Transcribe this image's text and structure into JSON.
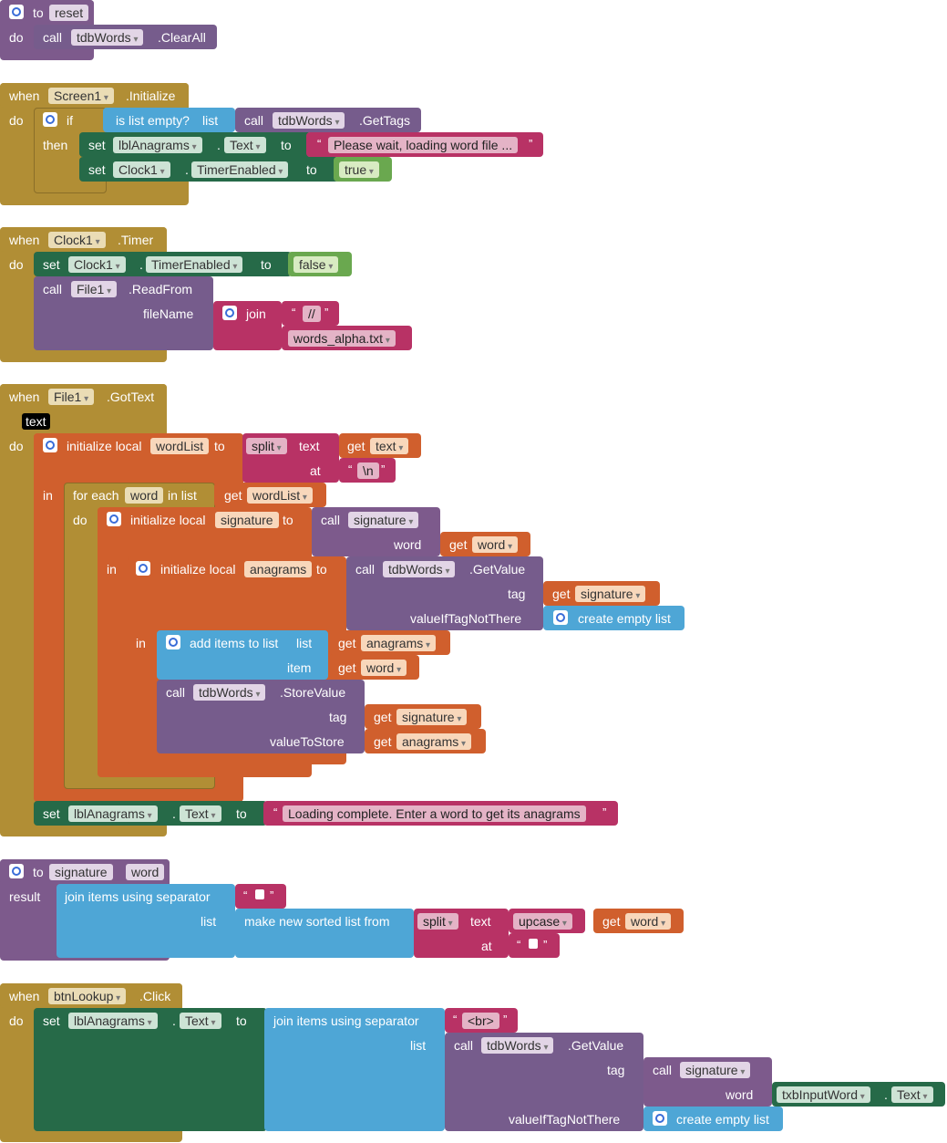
{
  "colors": {
    "event": "#b18e35",
    "procedure": "#7d5a8c",
    "component": "#765c8c",
    "setter": "#266a48",
    "list": "#4ea6d6",
    "text": "#b83265",
    "variable": "#d05f2d",
    "logic": "#6aa84f"
  },
  "reset": {
    "to": "to",
    "name": "reset",
    "do": "do",
    "call": "call",
    "comp": "tdbWords",
    "method": ".ClearAll"
  },
  "screen_init": {
    "when": "when",
    "comp": "Screen1",
    "event": ".Initialize",
    "do": "do",
    "if": "if",
    "then": "then",
    "is_list_empty": "is list empty?",
    "list": "list",
    "call": "call",
    "tdb": "tdbWords",
    "gettags": ".GetTags",
    "set": "set",
    "lbl": "lblAnagrams",
    "dot": ".",
    "prop_text": "Text",
    "to": "to",
    "wait_msg": "Please wait, loading word file ...",
    "clock": "Clock1",
    "timer_enabled": "TimerEnabled",
    "true": "true"
  },
  "clock_timer": {
    "when": "when",
    "comp": "Clock1",
    "event": ".Timer",
    "do": "do",
    "set": "set",
    "timer_enabled": "TimerEnabled",
    "dot": ".",
    "to": "to",
    "false": "false",
    "call": "call",
    "file": "File1",
    "readfrom": ".ReadFrom",
    "filename": "fileName",
    "join": "join",
    "slashes": "//",
    "file_opt": "words_alpha.txt"
  },
  "file_gottext": {
    "when": "when",
    "comp": "File1",
    "event": ".GotText",
    "param": "text",
    "do": "do",
    "init_local": "initialize local",
    "wordlist": "wordList",
    "to": "to",
    "split": "split",
    "text_lbl": "text",
    "get": "get",
    "text_var": "text",
    "at": "at",
    "newline": "\\n",
    "in": "in",
    "for_each": "for each",
    "word": "word",
    "in_list": "in list",
    "signature": "signature",
    "call": "call",
    "word_lbl": "word",
    "anagrams": "anagrams",
    "tdb": "tdbWords",
    "getvalue": ".GetValue",
    "tag": "tag",
    "value_if": "valueIfTagNotThere",
    "create_empty": "create empty list",
    "add_items": "add items to list",
    "list": "list",
    "item": "item",
    "storevalue": ".StoreValue",
    "value_to_store": "valueToStore",
    "set": "set",
    "lbl": "lblAnagrams",
    "dot": ".",
    "prop_text": "Text",
    "loading_complete": "Loading complete. Enter a word to get its anagrams"
  },
  "signature_proc": {
    "to": "to",
    "name": "signature",
    "param": "word",
    "result": "result",
    "join_sep": "join items using separator",
    "list": "list",
    "sorted": "make new sorted list from",
    "split": "split",
    "text_lbl": "text",
    "upcase": "upcase",
    "get": "get",
    "word": "word",
    "at": "at"
  },
  "btn_click": {
    "when": "when",
    "comp": "btnLookup",
    "event": ".Click",
    "do": "do",
    "set": "set",
    "lbl": "lblAnagrams",
    "dot": ".",
    "prop_text": "Text",
    "to": "to",
    "join_sep": "join items using separator",
    "br": "<br>",
    "list": "list",
    "call": "call",
    "tdb": "tdbWords",
    "getvalue": ".GetValue",
    "tag": "tag",
    "signature": "signature",
    "word_lbl": "word",
    "input": "txbInputWord",
    "value_if": "valueIfTagNotThere",
    "create_empty": "create empty list"
  }
}
